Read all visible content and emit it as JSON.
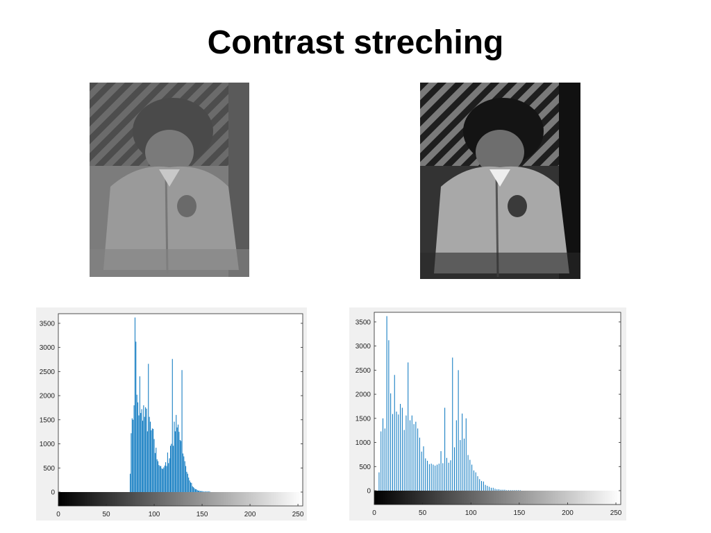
{
  "slide": {
    "title": "Contrast streching"
  },
  "images": [
    {
      "name": "original-image",
      "description_tone": "low-contrast grayscale"
    },
    {
      "name": "stretched-image",
      "description_tone": "high-contrast grayscale"
    }
  ],
  "chart_data": [
    {
      "type": "bar",
      "title": "",
      "xlabel": "",
      "ylabel": "",
      "xlim": [
        0,
        255
      ],
      "ylim": [
        0,
        3700
      ],
      "xticks": [
        0,
        50,
        100,
        150,
        200,
        250
      ],
      "yticks": [
        0,
        500,
        1000,
        1500,
        2000,
        2500,
        3000,
        3500
      ],
      "grayscale_colorbar": true,
      "bar_color": "#0072bd",
      "x": [
        75,
        76,
        77,
        78,
        79,
        80,
        81,
        82,
        83,
        84,
        85,
        86,
        87,
        88,
        89,
        90,
        91,
        92,
        93,
        94,
        95,
        96,
        97,
        98,
        99,
        100,
        101,
        102,
        103,
        104,
        105,
        106,
        107,
        108,
        109,
        110,
        111,
        112,
        113,
        114,
        115,
        116,
        117,
        118,
        119,
        120,
        121,
        122,
        123,
        124,
        125,
        126,
        127,
        128,
        129,
        130,
        131,
        132,
        133,
        134,
        135,
        136,
        137,
        138,
        139,
        140,
        141,
        142,
        143,
        144,
        145,
        146,
        147,
        148,
        149,
        150,
        151,
        152,
        153,
        154,
        155,
        156,
        157,
        158,
        159,
        160,
        161,
        162,
        163,
        164,
        165,
        166
      ],
      "values": [
        380,
        1220,
        1530,
        1500,
        1800,
        3620,
        3120,
        2020,
        1860,
        1590,
        2400,
        1640,
        1720,
        1480,
        1800,
        1560,
        1760,
        1730,
        1260,
        2660,
        1560,
        1460,
        1280,
        1320,
        1310,
        1100,
        810,
        920,
        680,
        640,
        560,
        540,
        540,
        490,
        480,
        510,
        550,
        620,
        540,
        820,
        600,
        700,
        960,
        1000,
        2760,
        960,
        1460,
        1260,
        1600,
        1340,
        1400,
        1250,
        1080,
        1060,
        2530,
        800,
        740,
        640,
        540,
        420,
        380,
        300,
        240,
        200,
        190,
        120,
        100,
        80,
        60,
        60,
        40,
        30,
        30,
        20,
        20,
        20,
        10,
        10,
        10,
        10,
        10,
        10,
        10,
        10,
        0,
        0,
        0,
        0,
        0,
        0,
        0,
        0
      ]
    },
    {
      "type": "bar",
      "title": "",
      "xlabel": "",
      "ylabel": "",
      "xlim": [
        0,
        255
      ],
      "ylim": [
        0,
        3700
      ],
      "xticks": [
        0,
        50,
        100,
        150,
        200,
        250
      ],
      "yticks": [
        0,
        500,
        1000,
        1500,
        2000,
        2500,
        3000,
        3500
      ],
      "grayscale_colorbar": true,
      "bar_color": "#0072bd",
      "x": [
        5,
        7,
        9,
        11,
        13,
        15,
        17,
        19,
        21,
        23,
        25,
        27,
        29,
        31,
        33,
        35,
        37,
        39,
        41,
        43,
        45,
        47,
        49,
        51,
        53,
        55,
        57,
        59,
        61,
        63,
        65,
        67,
        69,
        71,
        73,
        75,
        77,
        79,
        81,
        83,
        85,
        87,
        89,
        91,
        93,
        95,
        97,
        99,
        101,
        103,
        105,
        107,
        109,
        111,
        113,
        115,
        117,
        119,
        121,
        123,
        125,
        127,
        129,
        131,
        133,
        135,
        137,
        139,
        141,
        143,
        145,
        147,
        149,
        151,
        153,
        155,
        157,
        159,
        161,
        163,
        165,
        167,
        169,
        171
      ],
      "values": [
        380,
        1230,
        1500,
        1290,
        3620,
        3120,
        2020,
        1590,
        2400,
        1640,
        1580,
        1800,
        1720,
        1260,
        1560,
        2660,
        1460,
        1560,
        1380,
        1430,
        1290,
        1100,
        810,
        920,
        670,
        620,
        550,
        560,
        540,
        520,
        540,
        560,
        820,
        570,
        1720,
        680,
        580,
        630,
        2760,
        900,
        1460,
        2500,
        1050,
        1600,
        1080,
        1500,
        740,
        640,
        540,
        420,
        380,
        300,
        240,
        200,
        190,
        120,
        100,
        80,
        60,
        60,
        40,
        30,
        30,
        20,
        20,
        20,
        10,
        10,
        10,
        10,
        10,
        10,
        10,
        10,
        0,
        0,
        0,
        0,
        0,
        0,
        0,
        0,
        0,
        0
      ]
    }
  ]
}
